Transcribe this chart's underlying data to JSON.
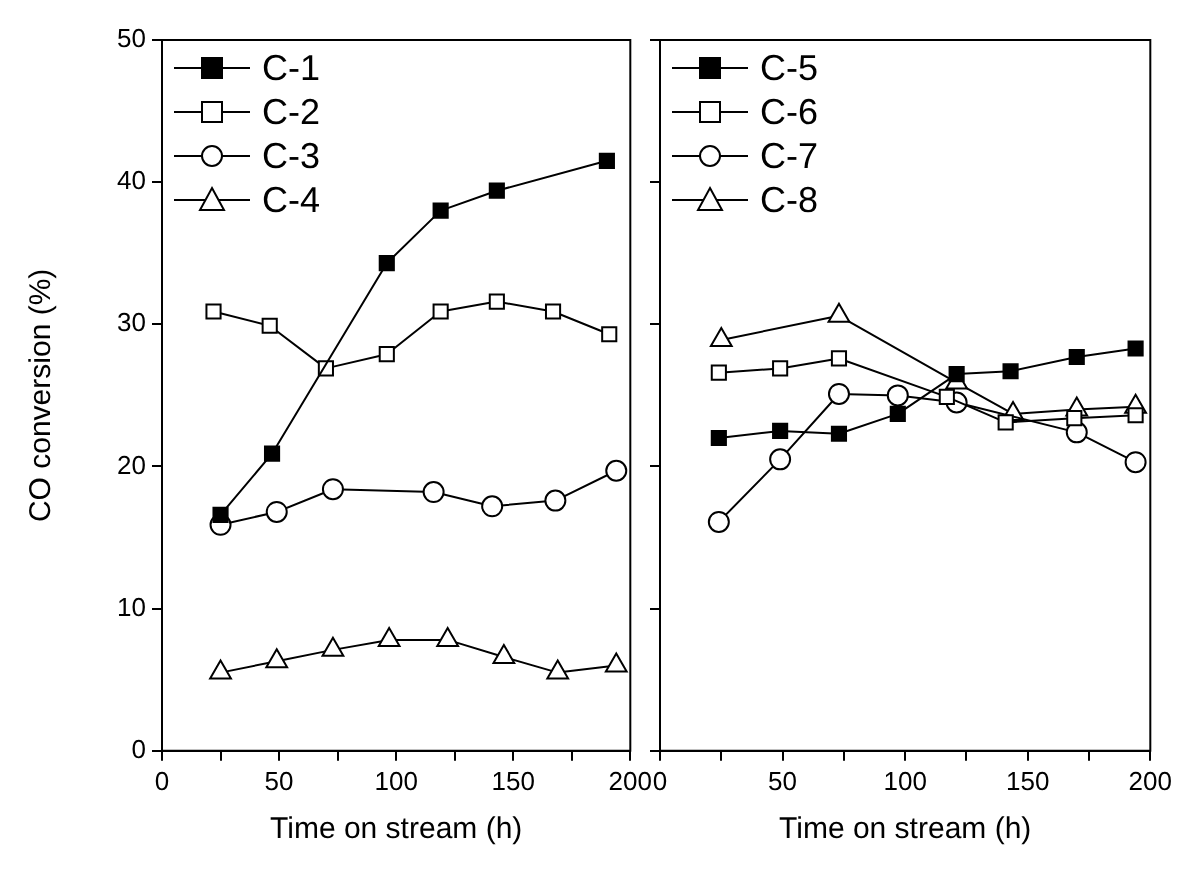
{
  "chart_data": [
    {
      "type": "line",
      "ylabel": "CO conversion (%)",
      "xlabel": "Time on stream (h)",
      "xlim": [
        0,
        200
      ],
      "xticks": [
        0,
        {
          "value": 25,
          "label": null
        },
        50,
        {
          "value": 75,
          "label": null
        },
        100,
        {
          "value": 125,
          "label": null
        },
        150,
        {
          "value": 175,
          "label": null
        },
        200
      ],
      "ylim": [
        0,
        50
      ],
      "yticks": [
        0,
        10,
        20,
        30,
        40,
        50
      ],
      "grid": false,
      "legend": "top left",
      "line_style": "solid",
      "series": [
        {
          "name": "C-1",
          "color": "#000000",
          "marker": "square",
          "x": [
            25,
            47,
            96,
            119,
            143,
            190
          ],
          "values": [
            16.6,
            20.9,
            34.3,
            38.0,
            39.4,
            41.5
          ]
        },
        {
          "name": "C-2",
          "color": "#000000",
          "marker": "square",
          "x": [
            22,
            46,
            70,
            96,
            119,
            143,
            167,
            191
          ],
          "values": [
            30.9,
            29.9,
            26.9,
            27.9,
            30.9,
            31.6,
            30.9,
            29.3
          ]
        },
        {
          "name": "C-3",
          "color": "#000000",
          "marker": "circle",
          "x": [
            25,
            49,
            73,
            116,
            141,
            168,
            194
          ],
          "values": [
            15.9,
            16.8,
            18.4,
            18.2,
            17.2,
            17.6,
            19.7
          ]
        },
        {
          "name": "C-4",
          "color": "#000000",
          "marker": "triangle",
          "x": [
            25,
            49,
            73,
            97,
            122,
            146,
            169,
            194
          ],
          "values": [
            5.5,
            6.3,
            7.1,
            7.8,
            7.8,
            6.6,
            5.5,
            6.0
          ]
        }
      ]
    },
    {
      "type": "line",
      "xlabel": "Time on stream (h)",
      "xlim": [
        0,
        200
      ],
      "xticks": [
        0,
        {
          "value": 25,
          "label": null
        },
        50,
        {
          "value": 75,
          "label": null
        },
        100,
        {
          "value": 125,
          "label": null
        },
        150,
        {
          "value": 175,
          "label": null
        },
        200
      ],
      "ylim": [
        0,
        50
      ],
      "yticks": [
        {
          "value": 0,
          "label": null
        },
        {
          "value": 10,
          "label": null
        },
        {
          "value": 20,
          "label": null
        },
        {
          "value": 30,
          "label": null
        },
        {
          "value": 40,
          "label": null
        },
        {
          "value": 50,
          "label": null
        }
      ],
      "tick_labels": "x",
      "grid": false,
      "legend": "top left",
      "line_style": "solid",
      "series": [
        {
          "name": "C-5",
          "color": "#000000",
          "marker": "square",
          "x": [
            24,
            49,
            73,
            97,
            121,
            143,
            170,
            194
          ],
          "values": [
            22.0,
            22.5,
            22.3,
            23.7,
            26.5,
            26.7,
            27.7,
            28.3
          ]
        },
        {
          "name": "C-6",
          "color": "#000000",
          "marker": "square",
          "x": [
            24,
            49,
            73,
            117,
            141,
            169,
            194
          ],
          "values": [
            26.6,
            26.9,
            27.6,
            24.9,
            23.1,
            23.4,
            23.6
          ]
        },
        {
          "name": "C-7",
          "color": "#000000",
          "marker": "circle",
          "x": [
            24,
            49,
            73,
            97,
            121,
            170,
            194
          ],
          "values": [
            16.1,
            20.5,
            25.1,
            25.0,
            24.5,
            22.4,
            20.3
          ]
        },
        {
          "name": "C-8",
          "color": "#000000",
          "marker": "triangle",
          "x": [
            25,
            73,
            121,
            144,
            170,
            194
          ],
          "values": [
            28.9,
            30.6,
            25.9,
            23.7,
            24.0,
            24.2
          ]
        }
      ]
    }
  ]
}
